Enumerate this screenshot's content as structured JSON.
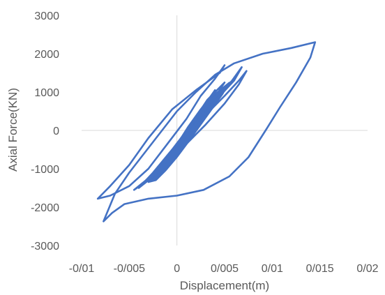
{
  "chart_data": {
    "type": "scatter",
    "title": "",
    "xlabel": "Displacement(m)",
    "ylabel": "Axial Force(KN)",
    "xlim": [
      -0.01,
      0.02
    ],
    "ylim": [
      -3000,
      3000
    ],
    "x_ticks": [
      -0.01,
      -0.005,
      0,
      0.005,
      0.01,
      0.015,
      0.02
    ],
    "x_tick_labels": [
      "-0/01",
      "-0/005",
      "0",
      "0/005",
      "0/01",
      "0/015",
      "0/02"
    ],
    "y_ticks": [
      -3000,
      -2000,
      -1000,
      0,
      1000,
      2000,
      3000
    ],
    "y_tick_labels": [
      "-3000",
      "-2000",
      "-1000",
      "0",
      "1000",
      "2000",
      "3000"
    ],
    "grid": false,
    "legend": "none",
    "series_color": "#4472c4",
    "series": [
      {
        "name": "",
        "points": [
          [
            -0.0077,
            -2370
          ],
          [
            -0.0068,
            -2150
          ],
          [
            -0.0055,
            -1920
          ],
          [
            -0.003,
            -1780
          ],
          [
            0.0,
            -1700
          ],
          [
            0.0028,
            -1550
          ],
          [
            0.0055,
            -1200
          ],
          [
            0.0075,
            -700
          ],
          [
            0.0093,
            0
          ],
          [
            0.0108,
            600
          ],
          [
            0.0125,
            1250
          ],
          [
            0.014,
            1900
          ],
          [
            0.0145,
            2300
          ],
          [
            0.012,
            2150
          ],
          [
            0.009,
            2000
          ],
          [
            0.006,
            1750
          ],
          [
            0.004,
            1450
          ],
          [
            0.002,
            1000
          ],
          [
            0.0,
            500
          ],
          [
            -0.0025,
            -300
          ],
          [
            -0.005,
            -1100
          ],
          [
            -0.0065,
            -1650
          ],
          [
            -0.0077,
            -2370
          ]
        ]
      },
      {
        "name": "",
        "points": [
          [
            -0.0083,
            -1780
          ],
          [
            -0.007,
            -1450
          ],
          [
            -0.005,
            -900
          ],
          [
            -0.003,
            -200
          ],
          [
            -0.0005,
            550
          ],
          [
            0.002,
            1050
          ],
          [
            0.0045,
            1500
          ],
          [
            0.005,
            1700
          ],
          [
            0.004,
            1350
          ],
          [
            0.0025,
            900
          ],
          [
            0.001,
            300
          ],
          [
            -0.001,
            -350
          ],
          [
            -0.003,
            -1000
          ],
          [
            -0.005,
            -1450
          ],
          [
            -0.007,
            -1700
          ],
          [
            -0.0083,
            -1780
          ]
        ]
      },
      {
        "name": "",
        "points": [
          [
            -0.0045,
            -1550
          ],
          [
            -0.003,
            -1300
          ],
          [
            -0.001,
            -800
          ],
          [
            0.001,
            -200
          ],
          [
            0.003,
            400
          ],
          [
            0.005,
            900
          ],
          [
            0.0065,
            1300
          ],
          [
            0.0073,
            1550
          ],
          [
            0.0065,
            1200
          ],
          [
            0.005,
            700
          ],
          [
            0.003,
            150
          ],
          [
            0.001,
            -350
          ],
          [
            -0.001,
            -850
          ],
          [
            -0.003,
            -1250
          ],
          [
            -0.0045,
            -1550
          ]
        ]
      },
      {
        "name": "",
        "points": [
          [
            -0.004,
            -1500
          ],
          [
            -0.0025,
            -1100
          ],
          [
            -0.0005,
            -500
          ],
          [
            0.0015,
            150
          ],
          [
            0.0035,
            700
          ],
          [
            0.0055,
            1200
          ],
          [
            0.0068,
            1650
          ],
          [
            0.006,
            1300
          ],
          [
            0.0045,
            900
          ],
          [
            0.0025,
            300
          ],
          [
            0.0005,
            -300
          ],
          [
            -0.0015,
            -850
          ],
          [
            -0.003,
            -1300
          ],
          [
            -0.004,
            -1500
          ]
        ]
      },
      {
        "name": "",
        "points": [
          [
            -0.0035,
            -1400
          ],
          [
            -0.002,
            -1000
          ],
          [
            -0.0005,
            -550
          ],
          [
            0.001,
            -50
          ],
          [
            0.0025,
            450
          ],
          [
            0.004,
            850
          ],
          [
            0.0058,
            1300
          ],
          [
            0.0048,
            1000
          ],
          [
            0.0035,
            600
          ],
          [
            0.002,
            150
          ],
          [
            0.0005,
            -350
          ],
          [
            -0.001,
            -800
          ],
          [
            -0.0025,
            -1200
          ],
          [
            -0.0035,
            -1400
          ]
        ]
      },
      {
        "name": "",
        "points": [
          [
            -0.0028,
            -1250
          ],
          [
            -0.0015,
            -900
          ],
          [
            -0.0002,
            -450
          ],
          [
            0.0012,
            100
          ],
          [
            0.0025,
            550
          ],
          [
            0.0038,
            950
          ],
          [
            0.005,
            1250
          ],
          [
            0.0042,
            950
          ],
          [
            0.003,
            550
          ],
          [
            0.0018,
            100
          ],
          [
            0.0004,
            -400
          ],
          [
            -0.001,
            -850
          ],
          [
            -0.002,
            -1100
          ],
          [
            -0.0028,
            -1250
          ]
        ]
      },
      {
        "name": "",
        "points": [
          [
            -0.0025,
            -1300
          ],
          [
            -0.001,
            -800
          ],
          [
            0.0,
            -450
          ],
          [
            0.0015,
            150
          ],
          [
            0.0028,
            600
          ],
          [
            0.004,
            1000
          ],
          [
            0.0035,
            750
          ],
          [
            0.0025,
            350
          ],
          [
            0.0012,
            -100
          ],
          [
            0.0,
            -550
          ],
          [
            -0.0012,
            -950
          ],
          [
            -0.0025,
            -1300
          ]
        ]
      },
      {
        "name": "",
        "points": [
          [
            -0.0018,
            -1050
          ],
          [
            -0.0005,
            -600
          ],
          [
            0.0005,
            -250
          ],
          [
            0.0018,
            250
          ],
          [
            0.003,
            700
          ],
          [
            0.004,
            1050
          ],
          [
            0.0032,
            750
          ],
          [
            0.002,
            300
          ],
          [
            0.0008,
            -150
          ],
          [
            -0.0005,
            -600
          ],
          [
            -0.0018,
            -1050
          ]
        ]
      },
      {
        "name": "",
        "points": [
          [
            -0.0015,
            -1000
          ],
          [
            0.0,
            -500
          ],
          [
            0.001,
            -100
          ],
          [
            0.002,
            350
          ],
          [
            0.0032,
            800
          ],
          [
            0.0038,
            950
          ],
          [
            0.0028,
            500
          ],
          [
            0.0016,
            0
          ],
          [
            0.0004,
            -450
          ],
          [
            -0.0008,
            -850
          ],
          [
            -0.0015,
            -1000
          ]
        ]
      }
    ],
    "core_fill": {
      "points": [
        [
          -0.003,
          -1350
        ],
        [
          -0.002,
          -1100
        ],
        [
          -0.0008,
          -700
        ],
        [
          0.0005,
          -300
        ],
        [
          0.0015,
          100
        ],
        [
          0.0028,
          550
        ],
        [
          0.004,
          950
        ],
        [
          0.005,
          1150
        ],
        [
          0.0055,
          1250
        ],
        [
          0.0048,
          950
        ],
        [
          0.0038,
          600
        ],
        [
          0.0025,
          150
        ],
        [
          0.0012,
          -300
        ],
        [
          0.0,
          -700
        ],
        [
          -0.0012,
          -1050
        ],
        [
          -0.0022,
          -1300
        ],
        [
          -0.003,
          -1350
        ]
      ]
    }
  }
}
